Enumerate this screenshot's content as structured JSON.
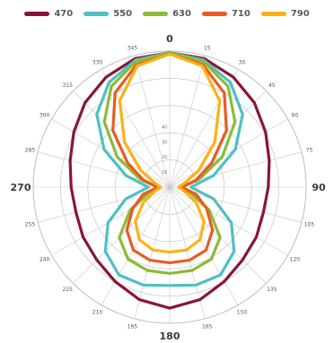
{
  "chart_data": {
    "type": "polar-line",
    "title": "",
    "angular_unit": "degrees",
    "angle_origin": "top",
    "direction": "clockwise",
    "angle_tick_labels": [
      "0",
      "15",
      "30",
      "45",
      "60",
      "75",
      "90",
      "105",
      "120",
      "135",
      "150",
      "165",
      "180",
      "195",
      "210",
      "225",
      "240",
      "255",
      "270",
      "285",
      "300",
      "315",
      "330",
      "345"
    ],
    "cardinal_labels": [
      "0",
      "90",
      "180",
      "270"
    ],
    "radial_ticks": [
      10,
      20,
      30,
      40
    ],
    "radial_tick_labels": [
      "10",
      "20",
      "30",
      "40"
    ],
    "rmax": 90,
    "legend_position": "top",
    "grid": true,
    "angles": [
      0,
      15,
      30,
      45,
      60,
      75,
      90,
      105,
      120,
      135,
      150,
      165,
      180,
      195,
      210,
      225,
      240,
      255,
      270,
      285,
      300,
      315,
      330,
      345
    ],
    "series": [
      {
        "name": "470",
        "color": "#8a1538",
        "values": [
          89,
          88,
          84,
          79,
          73,
          68,
          65,
          64,
          66,
          68,
          72,
          77,
          80,
          77,
          72,
          68,
          66,
          64,
          65,
          68,
          73,
          79,
          84,
          88
        ]
      },
      {
        "name": "550",
        "color": "#4ec0c4",
        "values": [
          89,
          87,
          80,
          68,
          50,
          30,
          14,
          30,
          47,
          60,
          67,
          67,
          65,
          67,
          67,
          60,
          47,
          30,
          14,
          30,
          50,
          68,
          80,
          87
        ]
      },
      {
        "name": "630",
        "color": "#8cbb36",
        "values": [
          89,
          86,
          77,
          61,
          40,
          20,
          8,
          14,
          30,
          47,
          55,
          57,
          57,
          57,
          55,
          47,
          30,
          14,
          8,
          20,
          40,
          61,
          77,
          86
        ]
      },
      {
        "name": "710",
        "color": "#e85b26",
        "values": [
          88,
          84,
          72,
          53,
          32,
          18,
          8,
          18,
          28,
          40,
          48,
          50,
          50,
          50,
          48,
          40,
          28,
          18,
          8,
          18,
          32,
          53,
          72,
          84
        ]
      },
      {
        "name": "790",
        "color": "#fbb216",
        "values": [
          88,
          83,
          66,
          42,
          22,
          10,
          6,
          10,
          20,
          32,
          40,
          43,
          43,
          43,
          40,
          32,
          20,
          10,
          6,
          10,
          22,
          42,
          66,
          83
        ]
      }
    ]
  }
}
